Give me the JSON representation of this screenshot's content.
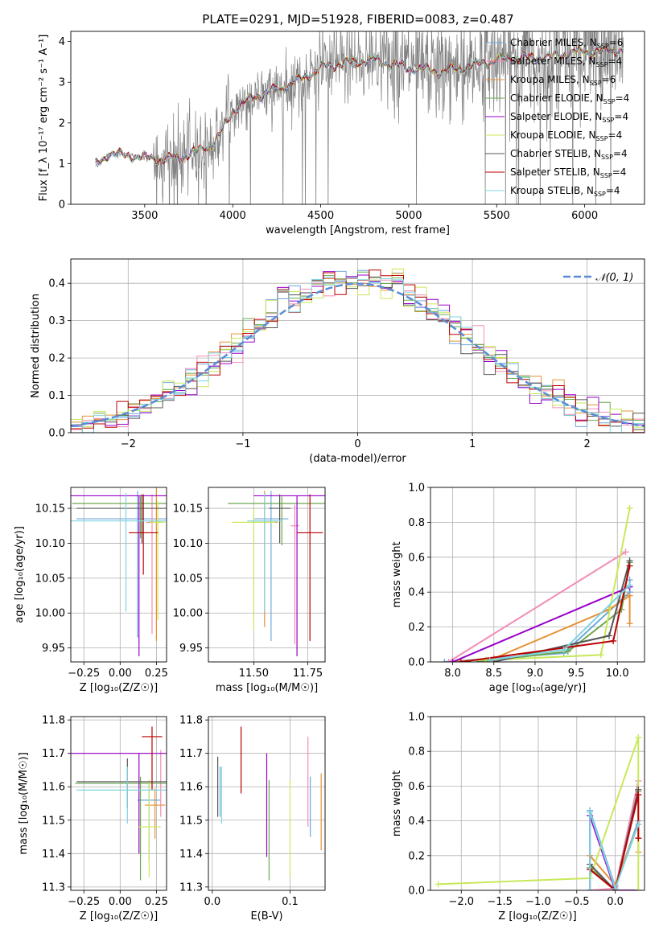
{
  "title": "PLATE=0291, MJD=51928, FIBERID=0083, z=0.487",
  "colors": {
    "c_miles": "#6fa8dc",
    "s_miles": "#f28cb8",
    "k_miles": "#e69138",
    "c_elodie": "#6aa84f",
    "s_elodie": "#9900cc",
    "k_elodie": "#c8e85a",
    "c_stelib": "#555555",
    "s_stelib": "#bb0000",
    "k_stelib": "#7fd4e0",
    "data": "#808080",
    "normal": "#5b8bd6"
  },
  "chart_data": [
    {
      "id": "spectrum",
      "type": "line",
      "xlabel": "wavelength [Angstrom, rest frame]",
      "ylabel": "Flux [f_λ 10⁻¹⁷ erg cm⁻² s⁻¹ A⁻¹]",
      "xlim": [
        3080,
        6340
      ],
      "ylim": [
        0,
        4.25
      ],
      "xticks": [
        3500,
        4000,
        4500,
        5000,
        5500,
        6000
      ],
      "yticks": [
        0,
        1,
        2,
        3,
        4
      ],
      "grid": false,
      "legend_placement": "top-right",
      "legend": [
        {
          "label": "Chabrier MILES, N",
          "sub": "SSP",
          "tail": "=6",
          "color_key": "c_miles"
        },
        {
          "label": "Salpeter MILES, N",
          "sub": "SSP",
          "tail": "=4",
          "color_key": "s_miles"
        },
        {
          "label": "Kroupa MILES, N",
          "sub": "SSP",
          "tail": "=6",
          "color_key": "k_miles"
        },
        {
          "label": "Chabrier ELODIE, N",
          "sub": "SSP",
          "tail": "=4",
          "color_key": "c_elodie"
        },
        {
          "label": "Salpeter ELODIE, N",
          "sub": "SSP",
          "tail": "=4",
          "color_key": "s_elodie"
        },
        {
          "label": "Kroupa ELODIE, N",
          "sub": "SSP",
          "tail": "=4",
          "color_key": "k_elodie"
        },
        {
          "label": "Chabrier STELIB, N",
          "sub": "SSP",
          "tail": "=4",
          "color_key": "c_stelib"
        },
        {
          "label": "Salpeter STELIB, N",
          "sub": "SSP",
          "tail": "=4",
          "color_key": "s_stelib"
        },
        {
          "label": "Kroupa STELIB, N",
          "sub": "SSP",
          "tail": "=4",
          "color_key": "k_stelib"
        }
      ],
      "model_continuum": {
        "x": [
          3220,
          3300,
          3400,
          3500,
          3600,
          3700,
          3800,
          3900,
          4000,
          4100,
          4200,
          4300,
          4400,
          4500,
          4600,
          4700,
          4800,
          4900,
          5000,
          5100,
          5200,
          5300,
          5400,
          5500,
          5600,
          5700,
          5800,
          5900,
          6000,
          6100,
          6200
        ],
        "y": [
          0.95,
          1.25,
          1.2,
          1.15,
          1.1,
          1.15,
          1.3,
          1.5,
          2.3,
          2.6,
          2.75,
          2.9,
          3.1,
          3.35,
          3.45,
          3.5,
          3.55,
          3.45,
          3.35,
          3.3,
          3.25,
          3.35,
          3.45,
          3.55,
          3.6,
          3.6,
          3.62,
          3.7,
          3.75,
          3.75,
          3.8
        ]
      },
      "data_noise": "gray observed spectrum with large scatter beyond 3550 Å"
    },
    {
      "id": "residuals",
      "type": "histogram",
      "xlabel": "(data-model)/error",
      "ylabel": "Normed distribution",
      "xlim": [
        -2.5,
        2.5
      ],
      "ylim": [
        0,
        0.465
      ],
      "xticks": [
        -2,
        -1,
        0,
        1,
        2
      ],
      "yticks": [
        0.0,
        0.1,
        0.2,
        0.3,
        0.4
      ],
      "grid": true,
      "bin_width": 0.1,
      "legend_placement": "top-right",
      "legend_label": "𝒩(0, 1)",
      "reference_curve": "standard normal pdf, dashed"
    },
    {
      "id": "age_vs_Z",
      "type": "scatter_errorbars",
      "xlabel": "Z [log₁₀(Z/Z☉)]",
      "ylabel": "age  [log₁₀(age/yr)]",
      "xlim": [
        -0.34,
        0.32
      ],
      "ylim": [
        9.93,
        10.18
      ],
      "xticks": [
        -0.25,
        0.0,
        0.25
      ],
      "yticks": [
        9.95,
        10.0,
        10.05,
        10.1,
        10.15
      ],
      "grid": true,
      "points": [
        {
          "k": "c_miles",
          "x": 0.12,
          "y": 10.135,
          "xerr": 0.42,
          "yerr": [
            0.17,
            0.04
          ]
        },
        {
          "k": "s_miles",
          "x": 0.22,
          "y": 10.13,
          "xerr": 0.04,
          "yerr": [
            0.16,
            0.04
          ]
        },
        {
          "k": "k_miles",
          "x": 0.25,
          "y": 10.13,
          "xerr": 0.05,
          "yerr": [
            0.17,
            0.05
          ]
        },
        {
          "k": "c_elodie",
          "x": 0.14,
          "y": 10.157,
          "xerr": 0.47,
          "yerr": [
            0.05,
            0.01
          ]
        },
        {
          "k": "s_elodie",
          "x": 0.13,
          "y": 10.168,
          "xerr": 0.5,
          "yerr": [
            0.23,
            0.0
          ]
        },
        {
          "k": "k_elodie",
          "x": 0.26,
          "y": 10.13,
          "xerr": 0.05,
          "yerr": [
            0.14,
            0.03
          ]
        },
        {
          "k": "c_stelib",
          "x": 0.15,
          "y": 10.15,
          "xerr": 0.45,
          "yerr": [
            0.05,
            0.02
          ]
        },
        {
          "k": "s_stelib",
          "x": 0.16,
          "y": 10.115,
          "xerr": 0.1,
          "yerr": [
            0.06,
            0.055
          ]
        },
        {
          "k": "k_stelib",
          "x": 0.04,
          "y": 10.132,
          "xerr": 0.4,
          "yerr": [
            0.13,
            0.04
          ]
        }
      ]
    },
    {
      "id": "age_vs_mass",
      "type": "scatter_errorbars",
      "xlabel": "mass [log₁₀(M/M☉)]",
      "ylabel": "",
      "xlim": [
        11.29,
        11.83
      ],
      "ylim": [
        9.93,
        10.18
      ],
      "xticks": [
        11.5,
        11.75
      ],
      "yticks": [
        9.95,
        10.0,
        10.05,
        10.1,
        10.15
      ],
      "grid": true,
      "points": [
        {
          "k": "c_miles",
          "x": 11.58,
          "y": 10.135,
          "xerr": 0.08,
          "yerr": [
            0.175,
            0.04
          ]
        },
        {
          "k": "s_miles",
          "x": 11.69,
          "y": 10.125,
          "xerr": 0.02,
          "yerr": [
            0.17,
            0.03
          ]
        },
        {
          "k": "k_miles",
          "x": 11.55,
          "y": 10.13,
          "xerr": 0.06,
          "yerr": [
            0.15,
            0.045
          ]
        },
        {
          "k": "c_elodie",
          "x": 11.63,
          "y": 10.157,
          "xerr": 0.25,
          "yerr": [
            0.06,
            0.01
          ]
        },
        {
          "k": "s_elodie",
          "x": 11.7,
          "y": 10.168,
          "xerr": 0.2,
          "yerr": [
            0.23,
            0.0
          ]
        },
        {
          "k": "k_elodie",
          "x": 11.5,
          "y": 10.13,
          "xerr": 0.1,
          "yerr": [
            0.155,
            0.02
          ]
        },
        {
          "k": "c_stelib",
          "x": 11.62,
          "y": 10.15,
          "xerr": 0.05,
          "yerr": [
            0.05,
            0.02
          ]
        },
        {
          "k": "s_stelib",
          "x": 11.76,
          "y": 10.115,
          "xerr": 0.06,
          "yerr": [
            0.155,
            0.055
          ]
        },
        {
          "k": "k_stelib",
          "x": 11.55,
          "y": 10.132,
          "xerr": 0.08,
          "yerr": [
            0.13,
            0.04
          ]
        }
      ]
    },
    {
      "id": "weight_vs_age",
      "type": "line",
      "xlabel": "age  [log₁₀(age/yr)]",
      "ylabel": "mass weight",
      "xlim": [
        7.73,
        10.33
      ],
      "ylim": [
        0,
        1
      ],
      "xticks": [
        8.0,
        8.5,
        9.0,
        9.5,
        10.0
      ],
      "yticks": [
        0.0,
        0.2,
        0.4,
        0.6,
        0.8,
        1.0
      ],
      "grid": true,
      "series": [
        {
          "k": "c_miles",
          "x": [
            7.9,
            9.35,
            10.15,
            10.15
          ],
          "y": [
            0.0,
            0.05,
            0.4,
            0.47
          ]
        },
        {
          "k": "s_miles",
          "x": [
            7.95,
            10.1
          ],
          "y": [
            0.0,
            0.63
          ]
        },
        {
          "k": "k_miles",
          "x": [
            8.0,
            8.5,
            9.9,
            10.15,
            10.15
          ],
          "y": [
            0.0,
            0.02,
            0.3,
            0.38,
            0.22
          ]
        },
        {
          "k": "c_elodie",
          "x": [
            8.3,
            9.4,
            10.05,
            10.15
          ],
          "y": [
            0.0,
            0.06,
            0.3,
            0.57
          ]
        },
        {
          "k": "s_elodie",
          "x": [
            8.0,
            10.15
          ],
          "y": [
            0.0,
            0.43
          ]
        },
        {
          "k": "k_elodie",
          "x": [
            8.4,
            9.8,
            10.15
          ],
          "y": [
            0.01,
            0.04,
            0.88
          ]
        },
        {
          "k": "c_stelib",
          "x": [
            8.5,
            9.9,
            10.15
          ],
          "y": [
            0.0,
            0.15,
            0.58
          ]
        },
        {
          "k": "s_stelib",
          "x": [
            8.1,
            9.95,
            10.15
          ],
          "y": [
            0.0,
            0.12,
            0.55
          ]
        },
        {
          "k": "k_stelib",
          "x": [
            8.45,
            9.35,
            10.15
          ],
          "y": [
            0.01,
            0.07,
            0.44
          ]
        }
      ]
    },
    {
      "id": "mass_vs_Z",
      "type": "scatter_errorbars",
      "xlabel": "Z [log₁₀(Z/Z☉)]",
      "ylabel": "mass [log₁₀(M/M☉)]",
      "xlim": [
        -0.34,
        0.32
      ],
      "ylim": [
        11.29,
        11.81
      ],
      "xticks": [
        -0.25,
        0.0,
        0.25
      ],
      "yticks": [
        11.3,
        11.4,
        11.5,
        11.6,
        11.7,
        11.8
      ],
      "grid": true,
      "points": [
        {
          "k": "c_miles",
          "x": 0.2,
          "y": 11.56,
          "xerr": 0.08,
          "yerr": [
            0.18,
            0.05
          ]
        },
        {
          "k": "s_miles",
          "x": 0.28,
          "y": 11.61,
          "xerr": 0.02,
          "yerr": [
            0.1,
            0.1
          ]
        },
        {
          "k": "k_miles",
          "x": 0.24,
          "y": 11.545,
          "xerr": 0.07,
          "yerr": [
            0.1,
            0.05
          ]
        },
        {
          "k": "c_elodie",
          "x": 0.14,
          "y": 11.61,
          "xerr": 0.45,
          "yerr": [
            0.29,
            0.02
          ]
        },
        {
          "k": "s_elodie",
          "x": 0.13,
          "y": 11.7,
          "xerr": 0.5,
          "yerr": [
            0.3,
            0.0
          ]
        },
        {
          "k": "k_elodie",
          "x": 0.2,
          "y": 11.48,
          "xerr": 0.08,
          "yerr": [
            0.15,
            0.14
          ]
        },
        {
          "k": "c_stelib",
          "x": 0.05,
          "y": 11.615,
          "xerr": 0.35,
          "yerr": [
            0.08,
            0.07
          ]
        },
        {
          "k": "s_stelib",
          "x": 0.22,
          "y": 11.75,
          "xerr": 0.07,
          "yerr": [
            0.16,
            0.03
          ]
        },
        {
          "k": "k_stelib",
          "x": 0.05,
          "y": 11.59,
          "xerr": 0.35,
          "yerr": [
            0.1,
            0.07
          ]
        }
      ]
    },
    {
      "id": "mass_vs_ebv",
      "type": "errorbars",
      "xlabel": "E(B-V)",
      "ylabel": "",
      "xlim": [
        -0.005,
        0.145
      ],
      "ylim": [
        11.29,
        11.81
      ],
      "xticks": [
        0.0,
        0.1
      ],
      "yticks": [
        11.3,
        11.4,
        11.5,
        11.6,
        11.7,
        11.8
      ],
      "grid": true,
      "points": [
        {
          "k": "c_stelib",
          "x": 0.007,
          "y": 11.59,
          "yerr": [
            0.08,
            0.1
          ]
        },
        {
          "k": "c_miles",
          "x": 0.01,
          "y": 11.59,
          "yerr": [
            0.08,
            0.07
          ]
        },
        {
          "k": "k_stelib",
          "x": 0.012,
          "y": 11.58,
          "yerr": [
            0.09,
            0.08
          ]
        },
        {
          "k": "s_stelib",
          "x": 0.037,
          "y": 11.68,
          "yerr": [
            0.1,
            0.1
          ]
        },
        {
          "k": "s_elodie",
          "x": 0.07,
          "y": 11.55,
          "yerr": [
            0.16,
            0.15
          ]
        },
        {
          "k": "c_elodie",
          "x": 0.073,
          "y": 11.47,
          "yerr": [
            0.15,
            0.15
          ]
        },
        {
          "k": "k_elodie",
          "x": 0.1,
          "y": 11.48,
          "yerr": [
            0.15,
            0.14
          ]
        },
        {
          "k": "s_miles",
          "x": 0.123,
          "y": 11.6,
          "yerr": [
            0.12,
            0.15
          ]
        },
        {
          "k": "c_miles",
          "x": 0.126,
          "y": 11.55,
          "yerr": [
            0.1,
            0.08
          ]
        },
        {
          "k": "k_miles",
          "x": 0.14,
          "y": 11.52,
          "yerr": [
            0.11,
            0.12
          ]
        }
      ]
    },
    {
      "id": "weight_vs_Z",
      "type": "line",
      "xlabel": "Z [log₁₀(Z/Z☉)]",
      "ylabel": "mass weight",
      "xlim": [
        -2.4,
        0.38
      ],
      "ylim": [
        0,
        1
      ],
      "xticks": [
        -2.0,
        -1.5,
        -1.0,
        -0.5,
        0.0
      ],
      "yticks": [
        0.0,
        0.2,
        0.4,
        0.6,
        0.8,
        1.0
      ],
      "grid": true,
      "series": [
        {
          "k": "c_miles",
          "x": [
            -0.33,
            -0.33,
            0.0,
            0.3
          ],
          "y": [
            0.0,
            0.46,
            0.02,
            0.4
          ]
        },
        {
          "k": "s_miles",
          "x": [
            -0.33,
            0.0,
            0.3
          ],
          "y": [
            0.0,
            0.01,
            0.63
          ]
        },
        {
          "k": "k_miles",
          "x": [
            -0.33,
            -0.33,
            0.0,
            0.3,
            0.3
          ],
          "y": [
            0.0,
            0.2,
            0.03,
            0.38,
            0.22
          ]
        },
        {
          "k": "c_elodie",
          "x": [
            -0.33,
            0.0,
            0.3
          ],
          "y": [
            0.13,
            0.0,
            0.57
          ]
        },
        {
          "k": "s_elodie",
          "x": [
            -0.33,
            -0.33,
            0.0,
            0.3
          ],
          "y": [
            0.0,
            0.43,
            0.0,
            0.0
          ]
        },
        {
          "k": "k_elodie",
          "x": [
            -2.3,
            -0.33,
            0.3,
            0.3
          ],
          "y": [
            0.035,
            0.07,
            0.88,
            0.0
          ]
        },
        {
          "k": "c_stelib",
          "x": [
            -0.33,
            0.0,
            0.3
          ],
          "y": [
            0.15,
            0.0,
            0.58
          ]
        },
        {
          "k": "s_stelib",
          "x": [
            -0.33,
            0.0,
            0.3,
            0.3
          ],
          "y": [
            0.12,
            0.0,
            0.55,
            0.3
          ]
        },
        {
          "k": "k_stelib",
          "x": [
            -0.33,
            -0.33,
            0.0,
            0.3
          ],
          "y": [
            0.0,
            0.45,
            0.01,
            0.38
          ]
        }
      ]
    }
  ]
}
